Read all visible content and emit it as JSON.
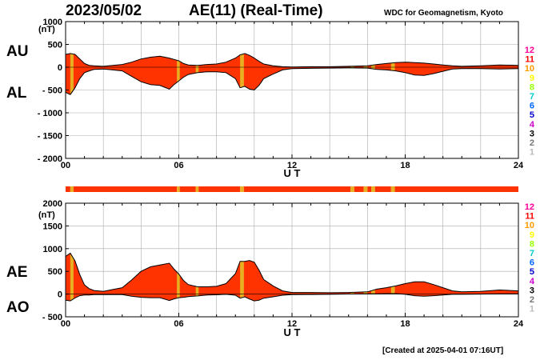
{
  "header": {
    "date": "2023/05/02",
    "title": "AE(11) (Real-Time)",
    "source": "WDC for Geomagnetism, Kyoto"
  },
  "footer": {
    "created": "[Created at 2025-04-01 07:16UT]"
  },
  "colors": {
    "fill": "#ff3300",
    "bar": "#e8b020",
    "outline": "#000000",
    "grid": "#aaaaaa"
  },
  "legend": {
    "items": [
      {
        "label": "12",
        "color": "#ff0099"
      },
      {
        "label": "11",
        "color": "#ff0000"
      },
      {
        "label": "10",
        "color": "#ff9900"
      },
      {
        "label": "9",
        "color": "#ffff00"
      },
      {
        "label": "8",
        "color": "#99ff00"
      },
      {
        "label": "7",
        "color": "#00cccc"
      },
      {
        "label": "6",
        "color": "#0066ff"
      },
      {
        "label": "5",
        "color": "#0000cc"
      },
      {
        "label": "4",
        "color": "#cc00cc"
      },
      {
        "label": "3",
        "color": "#000000"
      },
      {
        "label": "2",
        "color": "#777777"
      },
      {
        "label": "1",
        "color": "#bbbbbb"
      }
    ]
  },
  "station_bar": {
    "segments": [
      {
        "start": 0.0,
        "end": 0.25,
        "count": 11
      },
      {
        "start": 0.25,
        "end": 0.42,
        "count": 10
      },
      {
        "start": 0.42,
        "end": 5.9,
        "count": 11
      },
      {
        "start": 5.9,
        "end": 6.05,
        "count": 10
      },
      {
        "start": 6.05,
        "end": 6.9,
        "count": 11
      },
      {
        "start": 6.9,
        "end": 7.05,
        "count": 10
      },
      {
        "start": 7.05,
        "end": 9.25,
        "count": 11
      },
      {
        "start": 9.25,
        "end": 9.45,
        "count": 10
      },
      {
        "start": 9.45,
        "end": 15.1,
        "count": 11
      },
      {
        "start": 15.1,
        "end": 15.3,
        "count": 10
      },
      {
        "start": 15.3,
        "end": 15.8,
        "count": 11
      },
      {
        "start": 15.8,
        "end": 16.0,
        "count": 10
      },
      {
        "start": 16.0,
        "end": 16.2,
        "count": 11
      },
      {
        "start": 16.2,
        "end": 16.4,
        "count": 10
      },
      {
        "start": 16.4,
        "end": 17.25,
        "count": 11
      },
      {
        "start": 17.25,
        "end": 17.45,
        "count": 10
      },
      {
        "start": 17.45,
        "end": 24.0,
        "count": 11
      }
    ]
  },
  "chart_data": [
    {
      "type": "area",
      "labels": [
        "AU",
        "AL"
      ],
      "ylabel": "(nT)",
      "xlabel": "U T",
      "xlim": [
        0,
        24
      ],
      "ylim": [
        -2000,
        1000
      ],
      "yticks": [
        1000,
        500,
        0,
        -500,
        -1000,
        -1500,
        -2000
      ],
      "ytick_labels": [
        "1000",
        "500",
        "0",
        "- 500",
        "- 1000",
        "- 1500",
        "- 2000"
      ],
      "xticks": [
        0,
        6,
        12,
        18,
        24
      ],
      "xtick_labels": [
        "00",
        "06",
        "12",
        "18",
        "24"
      ],
      "grid": true,
      "x": [
        0,
        0.25,
        0.5,
        0.75,
        1.0,
        1.25,
        1.5,
        2.0,
        2.5,
        3.0,
        3.5,
        4.0,
        4.5,
        5.0,
        5.5,
        5.75,
        6.0,
        6.25,
        6.5,
        7.0,
        7.5,
        8.0,
        8.5,
        9.0,
        9.25,
        9.5,
        9.75,
        10.0,
        10.25,
        10.5,
        11.0,
        11.5,
        12.0,
        13.0,
        14.0,
        15.0,
        16.0,
        16.5,
        17.0,
        17.5,
        18.0,
        18.5,
        19.0,
        19.5,
        20.0,
        20.5,
        21.0,
        22.0,
        23.0,
        24.0
      ],
      "series": [
        {
          "name": "AU",
          "values": [
            280,
            300,
            280,
            180,
            80,
            40,
            30,
            20,
            40,
            60,
            110,
            180,
            220,
            240,
            200,
            170,
            140,
            80,
            50,
            40,
            60,
            70,
            110,
            200,
            270,
            300,
            260,
            200,
            130,
            70,
            30,
            10,
            5,
            10,
            10,
            20,
            30,
            60,
            80,
            100,
            110,
            100,
            90,
            70,
            50,
            30,
            20,
            30,
            50,
            40
          ]
        },
        {
          "name": "AL",
          "values": [
            -550,
            -600,
            -450,
            -250,
            -120,
            -80,
            -50,
            -40,
            -60,
            -80,
            -200,
            -320,
            -380,
            -400,
            -480,
            -380,
            -300,
            -220,
            -160,
            -120,
            -100,
            -100,
            -120,
            -250,
            -450,
            -420,
            -480,
            -500,
            -400,
            -250,
            -150,
            -60,
            -30,
            -25,
            -20,
            -15,
            -20,
            -50,
            -60,
            -80,
            -120,
            -170,
            -180,
            -140,
            -90,
            -40,
            -30,
            -30,
            -40,
            -30
          ]
        }
      ]
    },
    {
      "type": "area",
      "labels": [
        "AE",
        "AO"
      ],
      "ylabel": "(nT)",
      "xlabel": "U T",
      "xlim": [
        0,
        24
      ],
      "ylim": [
        -500,
        2000
      ],
      "yticks": [
        2000,
        1500,
        1000,
        500,
        0,
        -500
      ],
      "ytick_labels": [
        "2000",
        "1500",
        "1000",
        "500",
        "0",
        "- 500"
      ],
      "xticks": [
        0,
        6,
        12,
        18,
        24
      ],
      "xtick_labels": [
        "00",
        "06",
        "12",
        "18",
        "24"
      ],
      "grid": true,
      "x": [
        0,
        0.25,
        0.5,
        0.75,
        1.0,
        1.25,
        1.5,
        2.0,
        2.5,
        3.0,
        3.5,
        4.0,
        4.5,
        5.0,
        5.5,
        5.75,
        6.0,
        6.25,
        6.5,
        7.0,
        7.5,
        8.0,
        8.5,
        9.0,
        9.25,
        9.5,
        9.75,
        10.0,
        10.25,
        10.5,
        11.0,
        11.5,
        12.0,
        13.0,
        14.0,
        15.0,
        16.0,
        16.5,
        17.0,
        17.5,
        18.0,
        18.5,
        19.0,
        19.5,
        20.0,
        20.5,
        21.0,
        22.0,
        23.0,
        24.0
      ],
      "series": [
        {
          "name": "AE",
          "values": [
            830,
            900,
            730,
            430,
            200,
            120,
            80,
            60,
            100,
            140,
            310,
            500,
            600,
            640,
            680,
            550,
            440,
            300,
            210,
            160,
            160,
            170,
            230,
            450,
            720,
            720,
            740,
            700,
            530,
            320,
            180,
            70,
            35,
            35,
            30,
            35,
            50,
            110,
            140,
            180,
            230,
            270,
            270,
            210,
            140,
            70,
            50,
            60,
            90,
            70
          ]
        },
        {
          "name": "AO",
          "values": [
            -135,
            -150,
            -85,
            -35,
            -20,
            -20,
            -10,
            -10,
            -10,
            -10,
            -45,
            -70,
            -80,
            -80,
            -140,
            -105,
            -80,
            -70,
            -55,
            -40,
            -20,
            -15,
            -5,
            -25,
            -90,
            -60,
            -110,
            -150,
            -135,
            -90,
            -60,
            -25,
            -12,
            -8,
            -5,
            2,
            5,
            5,
            10,
            10,
            -5,
            -35,
            -45,
            -35,
            -20,
            -5,
            -5,
            0,
            5,
            5
          ]
        }
      ]
    }
  ]
}
